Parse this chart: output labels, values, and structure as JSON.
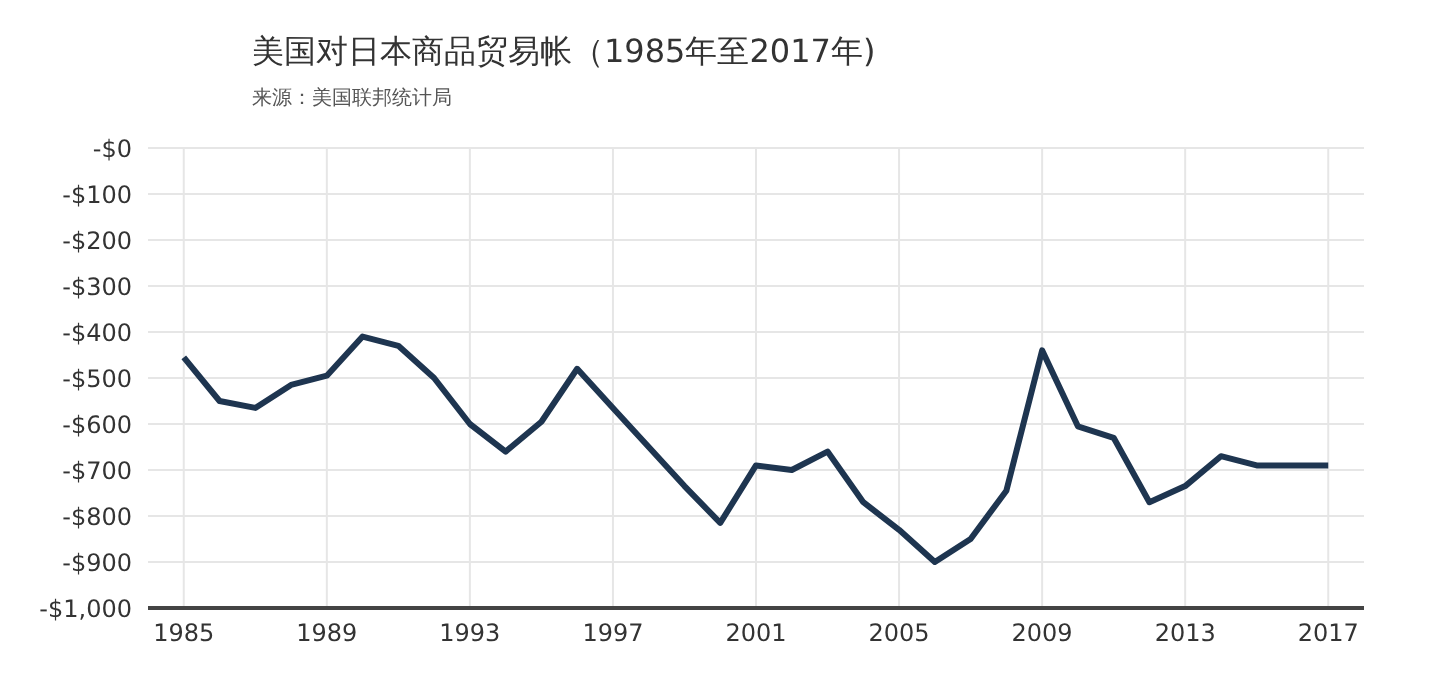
{
  "chart_data": {
    "type": "line",
    "title": "美国对日本商品贸易帐（1985年至2017年)",
    "annotations": [
      "来源：美国联邦统计局"
    ],
    "x": [
      1985,
      1986,
      1987,
      1988,
      1989,
      1990,
      1991,
      1992,
      1993,
      1994,
      1995,
      1996,
      1997,
      1998,
      1999,
      2000,
      2001,
      2002,
      2003,
      2004,
      2005,
      2006,
      2007,
      2008,
      2009,
      2010,
      2011,
      2012,
      2013,
      2014,
      2015,
      2016,
      2017
    ],
    "series": [
      {
        "color": "#1e3550",
        "values": [
          -455,
          -550,
          -565,
          -515,
          -495,
          -410,
          -430,
          -500,
          -600,
          -660,
          -595,
          -480,
          -565,
          -650,
          -735,
          -815,
          -690,
          -700,
          -660,
          -770,
          -830,
          -900,
          -850,
          -745,
          -440,
          -605,
          -630,
          -770,
          -735,
          -670,
          -690,
          -690,
          -690
        ]
      }
    ],
    "xlim": [
      1984,
      2018
    ],
    "xticks": [
      1985,
      1989,
      1993,
      1997,
      2001,
      2005,
      2009,
      2013,
      2017
    ],
    "ylim": [
      -1000,
      0
    ],
    "yticks": [
      {
        "value": 0,
        "label": "-$0"
      },
      {
        "value": -100,
        "label": "-$100"
      },
      {
        "value": -200,
        "label": "-$200"
      },
      {
        "value": -300,
        "label": "-$300"
      },
      {
        "value": -400,
        "label": "-$400"
      },
      {
        "value": -500,
        "label": "-$500"
      },
      {
        "value": -600,
        "label": "-$600"
      },
      {
        "value": -700,
        "label": "-$700"
      },
      {
        "value": -800,
        "label": "-$800"
      },
      {
        "value": -900,
        "label": "-$900"
      },
      {
        "value": -1000,
        "label": "-$1,000"
      }
    ],
    "grid": true,
    "legend": false,
    "marker": "none",
    "line_style": "solid"
  }
}
